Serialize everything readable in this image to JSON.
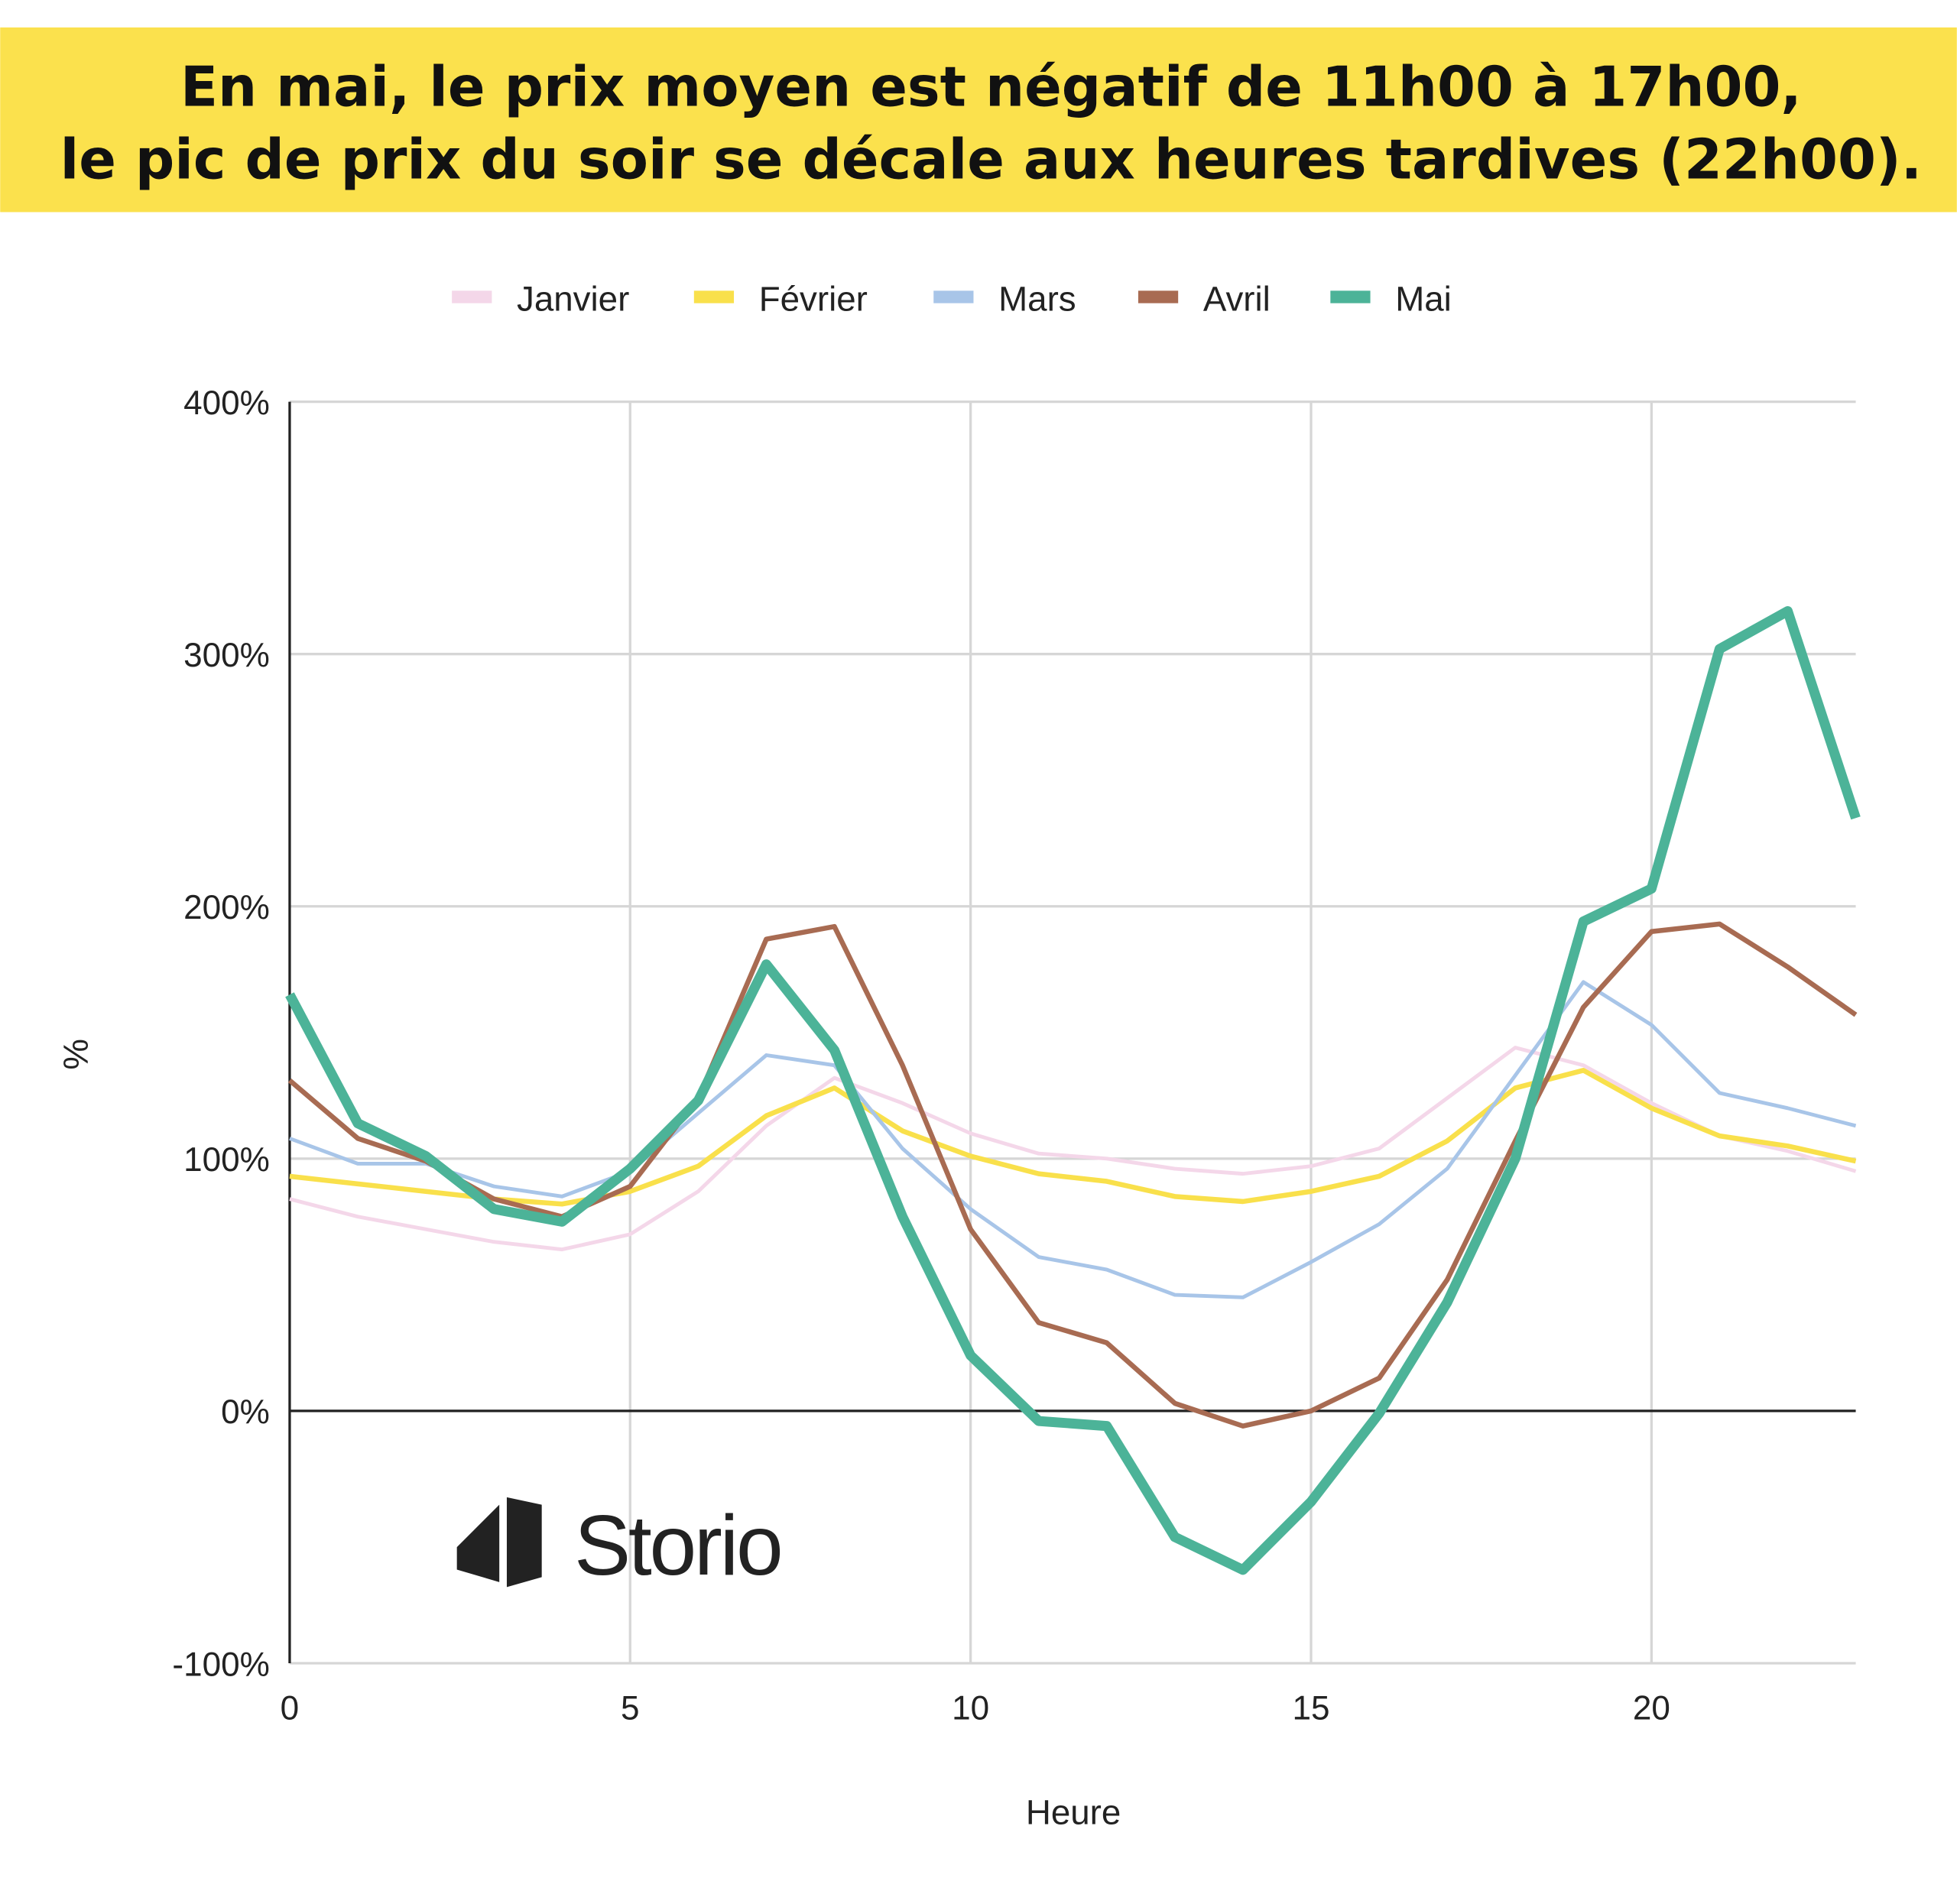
{
  "title": {
    "line1": "En mai, le prix moyen est négatif de 11h00 à 17h00,",
    "line2": "le pic de prix du soir se décale aux heures tardives (22h00).",
    "background": "#fbe14d"
  },
  "logo": {
    "text": "Storio"
  },
  "chart_data": {
    "type": "line",
    "xlabel": "Heure",
    "ylabel": "%",
    "xlim": [
      0,
      23
    ],
    "ylim": [
      -100,
      400
    ],
    "x_ticks": [
      0,
      5,
      10,
      15,
      20
    ],
    "x_tick_labels": [
      "0",
      "5",
      "10",
      "15",
      "20"
    ],
    "y_ticks": [
      -100,
      0,
      100,
      200,
      300,
      400
    ],
    "y_tick_labels": [
      "-100%",
      "0%",
      "100%",
      "200%",
      "300%",
      "400%"
    ],
    "grid": true,
    "legend_position": "top",
    "x": [
      0,
      1,
      2,
      3,
      4,
      5,
      6,
      7,
      8,
      9,
      10,
      11,
      12,
      13,
      14,
      15,
      16,
      17,
      18,
      19,
      20,
      21,
      22,
      23
    ],
    "series": [
      {
        "name": "Janvier",
        "color": "#f4d7e9",
        "values": [
          84,
          77,
          72,
          67,
          64,
          70,
          87,
          113,
          132,
          122,
          110,
          102,
          100,
          96,
          94,
          97,
          104,
          124,
          144,
          137,
          122,
          109,
          103,
          95
        ]
      },
      {
        "name": "Février",
        "color": "#f9e04b",
        "values": [
          93,
          90,
          87,
          84,
          82,
          87,
          97,
          117,
          128,
          111,
          101,
          94,
          91,
          85,
          83,
          87,
          93,
          107,
          128,
          135,
          120,
          109,
          105,
          99
        ]
      },
      {
        "name": "Mars",
        "color": "#a8c5e8",
        "values": [
          108,
          98,
          98,
          89,
          85,
          95,
          118,
          141,
          137,
          104,
          80,
          61,
          56,
          46,
          45,
          59,
          74,
          96,
          133,
          170,
          153,
          126,
          120,
          113
        ]
      },
      {
        "name": "Avril",
        "color": "#a86b52",
        "values": [
          131,
          108,
          99,
          84,
          77,
          89,
          124,
          187,
          192,
          137,
          72,
          35,
          27,
          3,
          -6,
          0,
          13,
          52,
          107,
          160,
          190,
          193,
          176,
          157
        ]
      },
      {
        "name": "Mai",
        "color": "#4cb398",
        "values": [
          165,
          114,
          101,
          80,
          75,
          96,
          123,
          177,
          143,
          77,
          22,
          -4,
          -6,
          -50,
          -63,
          -36,
          -1,
          43,
          100,
          194,
          207,
          302,
          317,
          235
        ]
      }
    ]
  }
}
